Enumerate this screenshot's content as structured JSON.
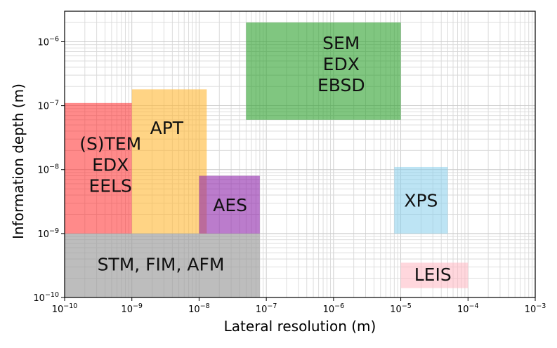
{
  "chart_data": {
    "type": "log-log region chart",
    "title": "",
    "xlabel": "Lateral resolution (m)",
    "ylabel": "Information depth (m)",
    "xlim": [
      1e-10,
      0.001
    ],
    "ylim": [
      1e-10,
      3e-06
    ],
    "xscale": "log",
    "yscale": "log",
    "grid": true,
    "x_ticks": [
      {
        "value": 1e-10,
        "base": "10",
        "exp": "−10"
      },
      {
        "value": 1e-09,
        "base": "10",
        "exp": "−9"
      },
      {
        "value": 1e-08,
        "base": "10",
        "exp": "−8"
      },
      {
        "value": 1e-07,
        "base": "10",
        "exp": "−7"
      },
      {
        "value": 1e-06,
        "base": "10",
        "exp": "−6"
      },
      {
        "value": 1e-05,
        "base": "10",
        "exp": "−5"
      },
      {
        "value": 0.0001,
        "base": "10",
        "exp": "−4"
      },
      {
        "value": 0.001,
        "base": "10",
        "exp": "−3"
      }
    ],
    "y_ticks": [
      {
        "value": 1e-10,
        "base": "10",
        "exp": "−10"
      },
      {
        "value": 1e-09,
        "base": "10",
        "exp": "−9"
      },
      {
        "value": 1e-08,
        "base": "10",
        "exp": "−8"
      },
      {
        "value": 1e-07,
        "base": "10",
        "exp": "−7"
      },
      {
        "value": 1e-06,
        "base": "10",
        "exp": "−6"
      }
    ],
    "regions": [
      {
        "id": "sem",
        "label_lines": [
          "SEM",
          "EDX",
          "EBSD"
        ],
        "x": [
          5e-08,
          1e-05
        ],
        "y": [
          6e-08,
          2e-06
        ],
        "color": "#2ca02c",
        "opacity": 0.6,
        "label_at": [
          1.3e-06,
          4.5e-07
        ]
      },
      {
        "id": "stem",
        "label_lines": [
          "(S)TEM",
          "EDX",
          "EELS"
        ],
        "x": [
          1e-10,
          1e-09
        ],
        "y": [
          1e-09,
          1.1e-07
        ],
        "color": "#ff2a2a",
        "opacity": 0.55,
        "label_at": [
          4.8e-10,
          1.2e-08
        ]
      },
      {
        "id": "apt",
        "label_lines": [
          "APT"
        ],
        "x": [
          1e-09,
          1.3e-08
        ],
        "y": [
          1e-09,
          1.8e-07
        ],
        "color": "#ffb733",
        "opacity": 0.6,
        "label_at": [
          3.3e-09,
          4.5e-08
        ]
      },
      {
        "id": "aes",
        "label_lines": [
          "AES"
        ],
        "x": [
          1e-08,
          8e-08
        ],
        "y": [
          1e-09,
          8e-09
        ],
        "color": "#8e24aa",
        "opacity": 0.6,
        "label_at": [
          2.9e-08,
          2.8e-09
        ]
      },
      {
        "id": "xps",
        "label_lines": [
          "XPS"
        ],
        "x": [
          8e-06,
          5e-05
        ],
        "y": [
          1e-09,
          1.1e-08
        ],
        "color": "#87ceeb",
        "opacity": 0.55,
        "label_at": [
          2e-05,
          3.3e-09
        ]
      },
      {
        "id": "stm",
        "label_lines": [
          "STM, FIM, AFM"
        ],
        "x": [
          1e-10,
          8e-08
        ],
        "y": [
          1e-10,
          1e-09
        ],
        "color": "#999999",
        "opacity": 0.65,
        "label_at": [
          2.7e-09,
          3.3e-10
        ]
      },
      {
        "id": "leis",
        "label_lines": [
          "LEIS"
        ],
        "x": [
          1e-05,
          0.0001
        ],
        "y": [
          1.4e-10,
          3.5e-10
        ],
        "color": "#ffb6c1",
        "opacity": 0.55,
        "label_at": [
          3e-05,
          2.3e-10
        ]
      }
    ]
  }
}
